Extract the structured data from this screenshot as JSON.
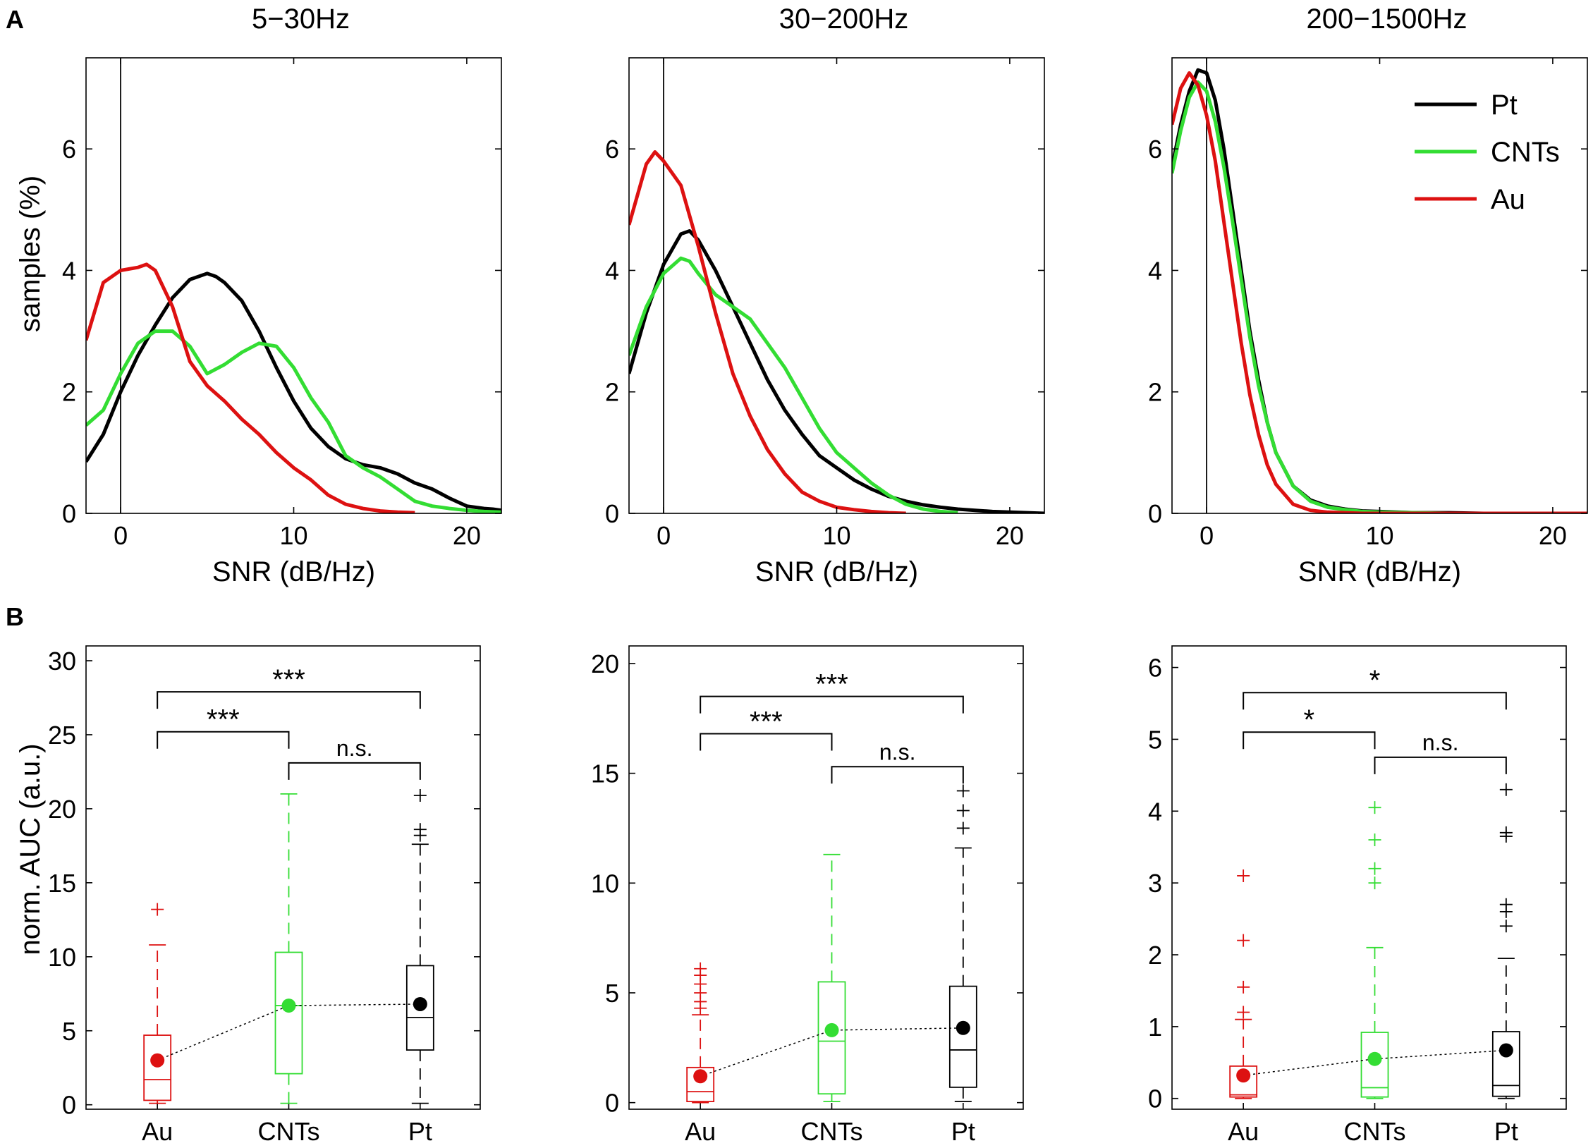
{
  "figure": {
    "panel_labels": [
      "A",
      "B"
    ]
  },
  "chart_data": [
    {
      "type": "line",
      "title": "5−30Hz",
      "xlabel": "SNR (dB/Hz)",
      "ylabel": "samples (%)",
      "xlim": [
        -2,
        22
      ],
      "ylim": [
        0,
        7.5
      ],
      "xticks": [
        0,
        10,
        20
      ],
      "yticks": [
        0,
        2,
        4,
        6
      ],
      "vline_at": 0,
      "series": [
        {
          "name": "Pt",
          "color": "#000000",
          "x": [
            -2,
            -1,
            0,
            1,
            2,
            3,
            4,
            5,
            5.5,
            6,
            7,
            8,
            9,
            10,
            11,
            12,
            13,
            14,
            15,
            16,
            17,
            18,
            19,
            20,
            21,
            21.5,
            22
          ],
          "y": [
            0.85,
            1.3,
            2.0,
            2.6,
            3.1,
            3.55,
            3.85,
            3.95,
            3.9,
            3.8,
            3.5,
            3.0,
            2.4,
            1.85,
            1.4,
            1.1,
            0.9,
            0.8,
            0.75,
            0.65,
            0.5,
            0.4,
            0.25,
            0.12,
            0.08,
            0.07,
            0.05
          ]
        },
        {
          "name": "CNTs",
          "color": "#33dd33",
          "x": [
            -2,
            -1,
            0,
            1,
            2,
            3,
            4,
            5,
            6,
            7,
            8,
            9,
            10,
            11,
            12,
            13,
            14,
            15,
            16,
            17,
            18,
            19,
            20,
            21,
            22
          ],
          "y": [
            1.45,
            1.7,
            2.3,
            2.8,
            3.0,
            3.0,
            2.75,
            2.3,
            2.45,
            2.65,
            2.8,
            2.75,
            2.4,
            1.9,
            1.5,
            0.95,
            0.75,
            0.6,
            0.4,
            0.2,
            0.12,
            0.08,
            0.05,
            0.03,
            0.02
          ]
        },
        {
          "name": "Au",
          "color": "#dd1111",
          "x": [
            -2,
            -1,
            0,
            1,
            1.5,
            2,
            3,
            4,
            5,
            6,
            7,
            8,
            9,
            10,
            11,
            12,
            13,
            14,
            15,
            16,
            17
          ],
          "y": [
            2.85,
            3.8,
            4.0,
            4.05,
            4.1,
            4.0,
            3.4,
            2.5,
            2.1,
            1.85,
            1.55,
            1.3,
            1.0,
            0.75,
            0.55,
            0.3,
            0.15,
            0.08,
            0.04,
            0.02,
            0.01
          ]
        }
      ]
    },
    {
      "type": "line",
      "title": "30−200Hz",
      "xlabel": "SNR (dB/Hz)",
      "xlim": [
        -2,
        22
      ],
      "ylim": [
        0,
        7.5
      ],
      "xticks": [
        0,
        10,
        20
      ],
      "yticks": [
        0,
        2,
        4,
        6
      ],
      "vline_at": 0,
      "series": [
        {
          "name": "Pt",
          "color": "#000000",
          "x": [
            -2,
            -1,
            0,
            1,
            1.5,
            2,
            3,
            4,
            5,
            6,
            7,
            8,
            9,
            10,
            11,
            12,
            13,
            14,
            15,
            16,
            17,
            18,
            19,
            20,
            21,
            22
          ],
          "y": [
            2.3,
            3.3,
            4.1,
            4.6,
            4.65,
            4.5,
            4.0,
            3.4,
            2.8,
            2.2,
            1.7,
            1.3,
            0.95,
            0.75,
            0.55,
            0.4,
            0.28,
            0.2,
            0.14,
            0.1,
            0.07,
            0.05,
            0.03,
            0.02,
            0.01,
            0.0
          ]
        },
        {
          "name": "CNTs",
          "color": "#33dd33",
          "x": [
            -2,
            -1,
            0,
            1,
            1.5,
            2,
            3,
            4,
            5,
            6,
            7,
            8,
            9,
            10,
            11,
            12,
            13,
            14,
            15,
            16,
            17
          ],
          "y": [
            2.6,
            3.4,
            3.95,
            4.2,
            4.15,
            3.95,
            3.6,
            3.4,
            3.2,
            2.8,
            2.4,
            1.9,
            1.4,
            1.0,
            0.75,
            0.5,
            0.3,
            0.15,
            0.07,
            0.03,
            0.01
          ]
        },
        {
          "name": "Au",
          "color": "#dd1111",
          "x": [
            -2,
            -1,
            -0.5,
            0,
            1,
            2,
            3,
            4,
            5,
            6,
            7,
            8,
            9,
            10,
            11,
            12,
            13,
            14
          ],
          "y": [
            4.75,
            5.75,
            5.95,
            5.8,
            5.4,
            4.4,
            3.3,
            2.3,
            1.6,
            1.05,
            0.65,
            0.35,
            0.2,
            0.1,
            0.06,
            0.03,
            0.01,
            0.0
          ]
        }
      ]
    },
    {
      "type": "line",
      "title": "200−1500Hz",
      "xlabel": "SNR (dB/Hz)",
      "xlim": [
        -2,
        22
      ],
      "ylim": [
        0,
        7.5
      ],
      "xticks": [
        0,
        10,
        20
      ],
      "yticks": [
        0,
        2,
        4,
        6
      ],
      "vline_at": 0,
      "legend": {
        "placement": "top-right",
        "entries": [
          "Pt",
          "CNTs",
          "Au"
        ]
      },
      "series": [
        {
          "name": "Pt",
          "color": "#000000",
          "x": [
            -2,
            -1.5,
            -1,
            -0.5,
            0,
            0.5,
            1,
            1.5,
            2,
            2.5,
            3,
            3.5,
            4,
            5,
            6,
            7,
            8,
            9,
            10,
            11,
            12,
            14,
            16,
            18,
            20,
            22
          ],
          "y": [
            5.7,
            6.4,
            6.95,
            7.3,
            7.25,
            6.8,
            6.0,
            5.0,
            4.0,
            3.0,
            2.2,
            1.5,
            1.0,
            0.45,
            0.22,
            0.12,
            0.07,
            0.04,
            0.03,
            0.02,
            0.01,
            0.01,
            0.0,
            0.0,
            0.0,
            0.0
          ]
        },
        {
          "name": "CNTs",
          "color": "#33dd33",
          "x": [
            -2,
            -1.5,
            -1,
            -0.5,
            0,
            0.5,
            1,
            1.5,
            2,
            2.5,
            3,
            3.5,
            4,
            5,
            6,
            7,
            8,
            9,
            10,
            12,
            14,
            18,
            22
          ],
          "y": [
            5.6,
            6.3,
            6.85,
            7.1,
            6.95,
            6.45,
            5.7,
            4.8,
            3.85,
            2.9,
            2.1,
            1.5,
            1.0,
            0.45,
            0.2,
            0.1,
            0.06,
            0.03,
            0.02,
            0.01,
            0.0,
            0.0,
            0.0
          ]
        },
        {
          "name": "Au",
          "color": "#dd1111",
          "x": [
            -2,
            -1.5,
            -1,
            -0.5,
            0,
            0.5,
            1,
            1.5,
            2,
            2.5,
            3,
            3.5,
            4,
            5,
            6,
            7,
            8,
            9,
            10,
            12,
            14,
            18,
            22
          ],
          "y": [
            6.4,
            7.0,
            7.25,
            7.05,
            6.55,
            5.8,
            4.8,
            3.8,
            2.8,
            1.95,
            1.3,
            0.8,
            0.48,
            0.15,
            0.05,
            0.02,
            0.01,
            0.0,
            0.0,
            0.0,
            0.0,
            0.0,
            0.0
          ]
        }
      ]
    },
    {
      "type": "box",
      "ylabel": "norm. AUC (a.u.)",
      "categories": [
        "Au",
        "CNTs",
        "Pt"
      ],
      "colors": [
        "#dd1111",
        "#33dd33",
        "#000000"
      ],
      "ylim": [
        -0.3,
        31
      ],
      "yticks": [
        0,
        5,
        10,
        15,
        20,
        25,
        30
      ],
      "boxes": [
        {
          "whisker_low": 0.1,
          "q1": 0.3,
          "median": 1.7,
          "q3": 4.7,
          "whisker_high": 10.8,
          "mean": 3.0,
          "outliers": [
            13.2
          ]
        },
        {
          "whisker_low": 0.1,
          "q1": 2.1,
          "median": 6.7,
          "q3": 10.3,
          "whisker_high": 21.0,
          "mean": 6.7,
          "outliers": []
        },
        {
          "whisker_low": 0.1,
          "q1": 3.7,
          "median": 5.9,
          "q3": 9.4,
          "whisker_high": 17.6,
          "mean": 6.8,
          "outliers": [
            18.2,
            18.6,
            20.9
          ]
        }
      ],
      "significance": [
        {
          "from": 0,
          "to": 2,
          "label": "***",
          "level": 27.9
        },
        {
          "from": 0,
          "to": 1,
          "label": "***",
          "level": 25.2
        },
        {
          "from": 1,
          "to": 2,
          "label": "n.s.",
          "level": 23.1
        }
      ]
    },
    {
      "type": "box",
      "categories": [
        "Au",
        "CNTs",
        "Pt"
      ],
      "colors": [
        "#dd1111",
        "#33dd33",
        "#000000"
      ],
      "ylim": [
        -0.3,
        20.8
      ],
      "yticks": [
        0,
        5,
        10,
        15,
        20
      ],
      "boxes": [
        {
          "whisker_low": 0.0,
          "q1": 0.05,
          "median": 0.5,
          "q3": 1.6,
          "whisker_high": 4.0,
          "mean": 1.2,
          "outliers": [
            4.3,
            4.6,
            5.0,
            5.4,
            5.8,
            6.1
          ]
        },
        {
          "whisker_low": 0.05,
          "q1": 0.4,
          "median": 2.8,
          "q3": 5.5,
          "whisker_high": 11.3,
          "mean": 3.3,
          "outliers": []
        },
        {
          "whisker_low": 0.05,
          "q1": 0.7,
          "median": 2.4,
          "q3": 5.3,
          "whisker_high": 11.6,
          "mean": 3.4,
          "outliers": [
            12.5,
            13.3,
            14.2
          ]
        }
      ],
      "significance": [
        {
          "from": 0,
          "to": 2,
          "label": "***",
          "level": 18.5
        },
        {
          "from": 0,
          "to": 1,
          "label": "***",
          "level": 16.8
        },
        {
          "from": 1,
          "to": 2,
          "label": "n.s.",
          "level": 15.3
        }
      ]
    },
    {
      "type": "box",
      "categories": [
        "Au",
        "CNTs",
        "Pt"
      ],
      "colors": [
        "#dd1111",
        "#33dd33",
        "#000000"
      ],
      "ylim": [
        -0.15,
        6.3
      ],
      "yticks": [
        0,
        1,
        2,
        3,
        4,
        5,
        6
      ],
      "boxes": [
        {
          "whisker_low": 0.0,
          "q1": 0.02,
          "median": 0.05,
          "q3": 0.45,
          "whisker_high": 1.1,
          "mean": 0.32,
          "outliers": [
            1.2,
            1.55,
            2.2,
            3.1
          ]
        },
        {
          "whisker_low": 0.0,
          "q1": 0.02,
          "median": 0.15,
          "q3": 0.92,
          "whisker_high": 2.1,
          "mean": 0.55,
          "outliers": [
            3.0,
            3.2,
            3.6,
            4.05
          ]
        },
        {
          "whisker_low": 0.0,
          "q1": 0.03,
          "median": 0.18,
          "q3": 0.93,
          "whisker_high": 1.95,
          "mean": 0.67,
          "outliers": [
            2.4,
            2.6,
            2.7,
            3.65,
            3.7,
            4.3
          ]
        }
      ],
      "significance": [
        {
          "from": 0,
          "to": 2,
          "label": "*",
          "level": 5.65
        },
        {
          "from": 0,
          "to": 1,
          "label": "*",
          "level": 5.1
        },
        {
          "from": 1,
          "to": 2,
          "label": "n.s.",
          "level": 4.75
        }
      ]
    }
  ]
}
